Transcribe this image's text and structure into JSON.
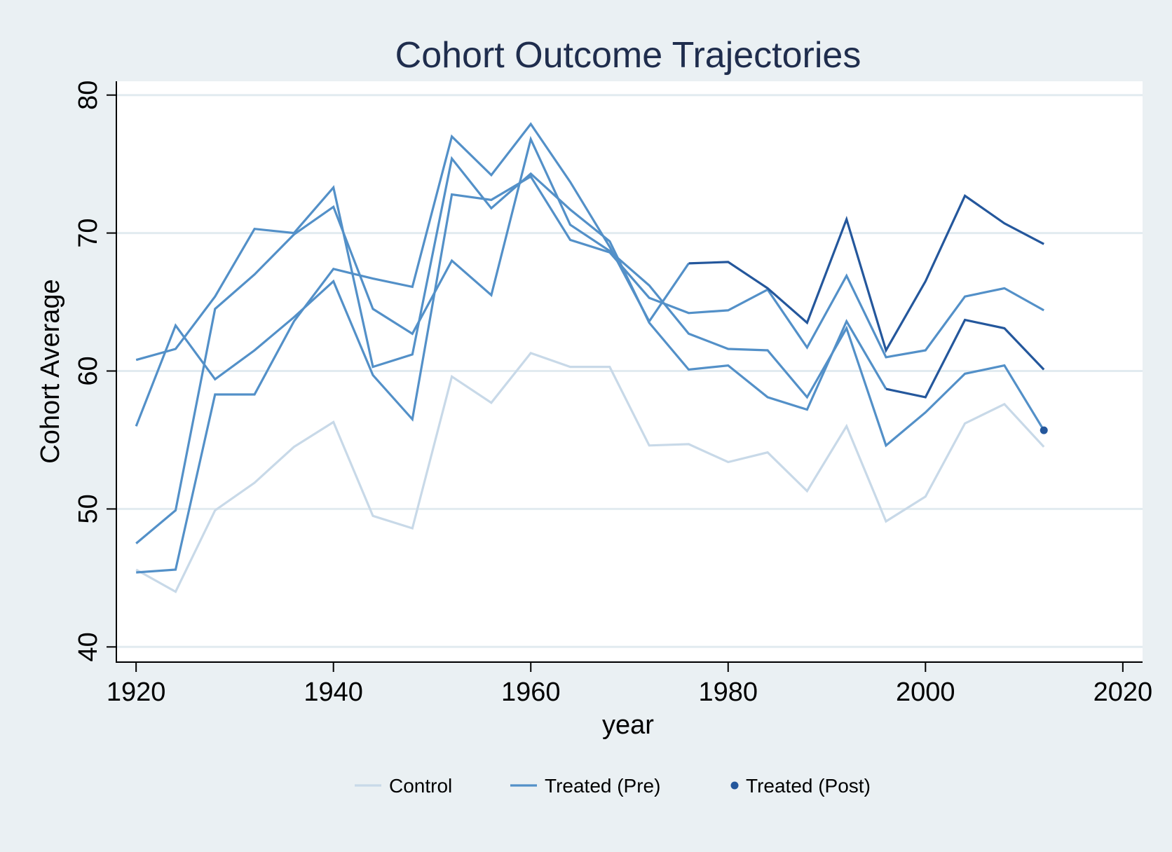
{
  "chart_data": {
    "type": "line",
    "title": "Cohort Outcome Trajectories",
    "xlabel": "year",
    "ylabel": "Cohort Average",
    "xlim": [
      1918,
      2022
    ],
    "ylim": [
      39,
      81
    ],
    "xticks": [
      1920,
      1940,
      1960,
      1980,
      2000,
      2020
    ],
    "yticks": [
      40,
      50,
      60,
      70,
      80
    ],
    "grid": "horizontal",
    "legend_position": "bottom",
    "colors": {
      "control": "#c8d9e8",
      "treated_pre": "#5390c8",
      "treated_post": "#24579c",
      "plot_bg": "#ffffff",
      "outer_bg": "#eaf0f3",
      "grid": "#e2ebf0",
      "title": "#1f2d4d"
    },
    "legend": [
      {
        "label": "Control",
        "kind": "line",
        "color_key": "control"
      },
      {
        "label": "Treated (Pre)",
        "kind": "line",
        "color_key": "treated_pre"
      },
      {
        "label": "Treated (Post)",
        "kind": "marker",
        "color_key": "treated_post"
      }
    ],
    "series": [
      {
        "group": "control",
        "x": [
          1920,
          1924,
          1928,
          1932,
          1936,
          1940,
          1944,
          1948,
          1952,
          1956,
          1960,
          1964,
          1968,
          1972,
          1976,
          1980,
          1984,
          1988,
          1992,
          1996,
          2000,
          2004,
          2008,
          2012
        ],
        "y": [
          45.6,
          44.0,
          49.9,
          51.9,
          54.5,
          56.3,
          49.5,
          48.6,
          59.6,
          57.7,
          61.3,
          60.3,
          60.3,
          54.6,
          54.7,
          53.4,
          54.1,
          51.3,
          56.0,
          49.1,
          50.9,
          56.2,
          57.6,
          54.5
        ]
      },
      {
        "group": "treated",
        "x": [
          1920,
          1924,
          1928,
          1932,
          1936,
          1940,
          1944,
          1948,
          1952,
          1956,
          1960,
          1964,
          1968,
          1972,
          1976,
          1980,
          1984,
          1988,
          1992,
          1996,
          2000,
          2004,
          2008,
          2012
        ],
        "y": [
          45.4,
          45.6,
          58.3,
          58.3,
          63.6,
          67.4,
          66.7,
          66.1,
          77.0,
          74.2,
          77.9,
          73.7,
          69.0,
          63.6,
          67.8,
          67.9,
          66.0,
          63.5,
          71.0,
          61.5,
          66.5,
          72.7,
          70.7,
          69.2
        ],
        "post_from": 1976
      },
      {
        "group": "treated",
        "x": [
          1920,
          1924,
          1928,
          1932,
          1936,
          1940,
          1944,
          1948,
          1952,
          1956,
          1960,
          1964,
          1968,
          1972,
          1976,
          1980,
          1984,
          1988,
          1992,
          1996,
          2000,
          2004,
          2008,
          2012
        ],
        "y": [
          60.8,
          61.6,
          65.4,
          70.3,
          70.0,
          73.3,
          60.3,
          61.2,
          75.4,
          71.8,
          74.3,
          71.7,
          69.4,
          63.5,
          60.1,
          60.4,
          58.1,
          57.2,
          63.6,
          58.7,
          58.1,
          63.7,
          63.1,
          60.1
        ],
        "post_from": 1996
      },
      {
        "group": "treated",
        "x": [
          1920,
          1924,
          1928,
          1932,
          1936,
          1940,
          1944,
          1948,
          1952,
          1956,
          1960,
          1964,
          1968,
          1972,
          1976,
          1980,
          1984,
          1988,
          1992,
          1996,
          2000,
          2004,
          2008,
          2012
        ],
        "y": [
          56.0,
          63.3,
          59.4,
          61.5,
          63.9,
          66.5,
          59.7,
          56.5,
          72.8,
          72.4,
          74.1,
          69.5,
          68.6,
          65.3,
          64.2,
          64.4,
          65.9,
          61.7,
          66.9,
          61.0,
          61.5,
          65.4,
          66.0,
          64.4
        ],
        "post_from": 2012
      },
      {
        "group": "treated",
        "x": [
          1920,
          1924,
          1928,
          1932,
          1936,
          1940,
          1944,
          1948,
          1952,
          1956,
          1960,
          1964,
          1968,
          1972,
          1976,
          1980,
          1984,
          1988,
          1992,
          1996,
          2000,
          2004,
          2008,
          2012
        ],
        "y": [
          47.5,
          49.9,
          64.5,
          67.0,
          69.9,
          71.9,
          64.5,
          62.7,
          68.0,
          65.5,
          76.8,
          70.6,
          68.7,
          66.2,
          62.7,
          61.6,
          61.5,
          58.1,
          63.1,
          54.6,
          57.0,
          59.8,
          60.4,
          55.7
        ],
        "post_from": null
      }
    ],
    "post_markers": [
      {
        "x": 2012,
        "y": 55.7
      }
    ]
  }
}
